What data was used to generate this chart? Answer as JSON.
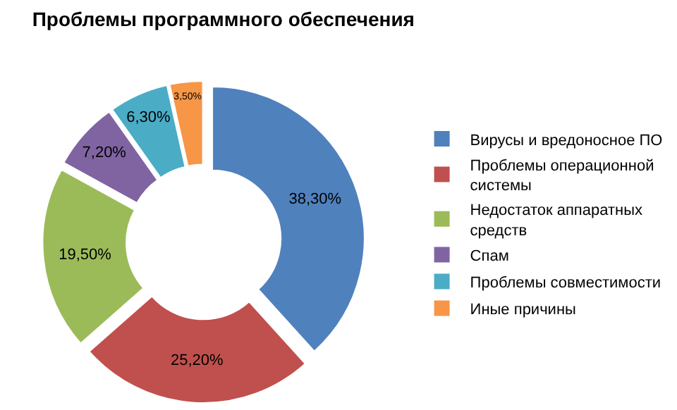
{
  "chart_data": {
    "type": "donut",
    "title": "Проблемы программного обеспечения",
    "categories": [
      "Вирусы и вредоносное ПО",
      "Проблемы операционной системы",
      "Недостаток аппаратных средств",
      "Спам",
      "Проблемы совместимости",
      "Иные причины"
    ],
    "values": [
      38.3,
      25.2,
      19.5,
      7.2,
      6.3,
      3.5
    ],
    "value_labels": [
      "38,30%",
      "25,20%",
      "19,50%",
      "7,20%",
      "6,30%",
      "3,50%"
    ],
    "colors": [
      "#4f81bd",
      "#c0504d",
      "#9bbb59",
      "#8064a2",
      "#4bacc6",
      "#f79646"
    ],
    "legend": "right"
  }
}
